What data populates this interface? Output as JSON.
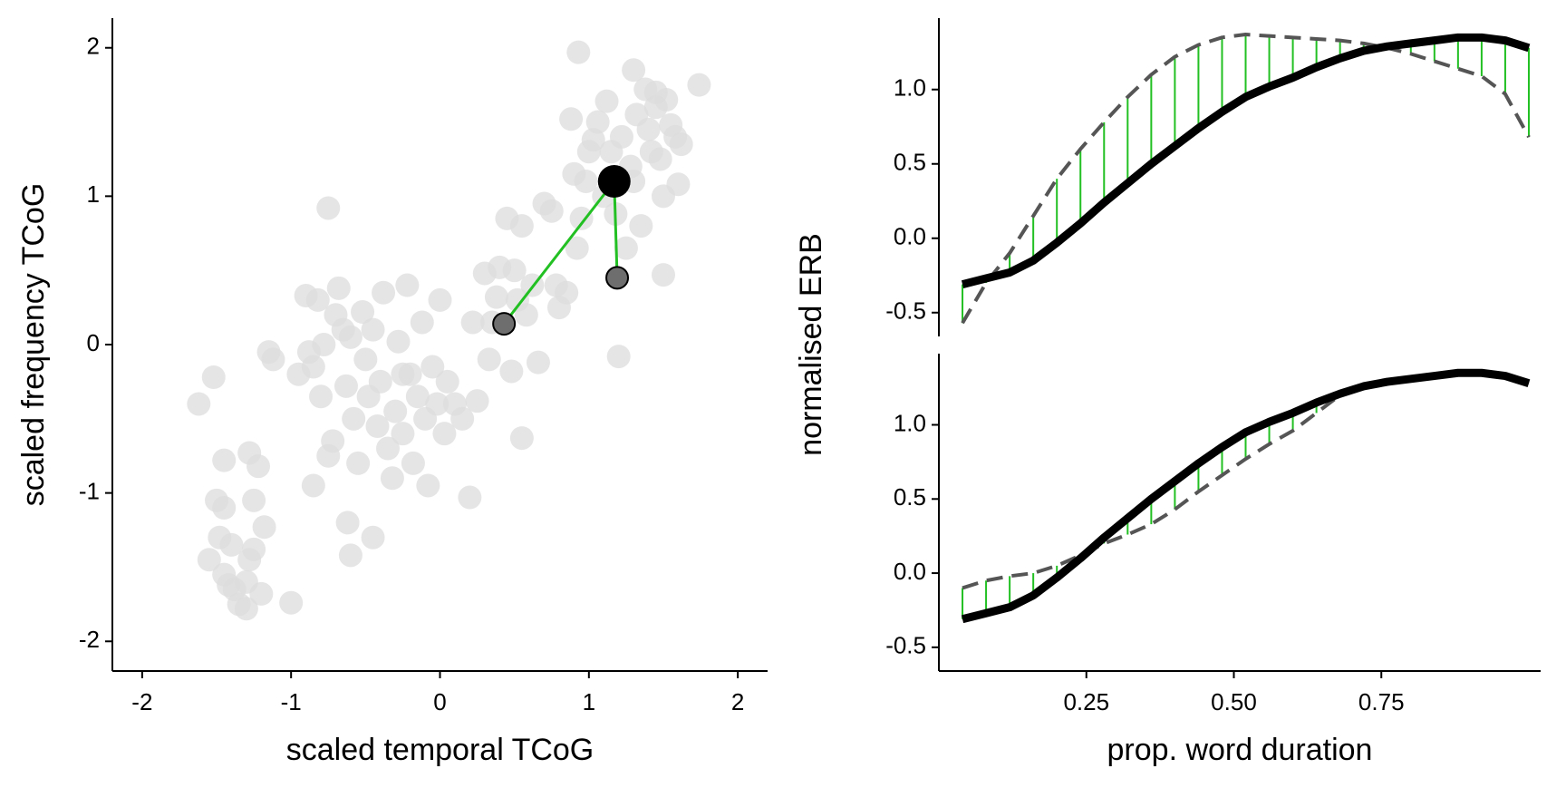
{
  "chart_data": [
    {
      "type": "scatter",
      "xlabel": "scaled temporal TCoG",
      "ylabel": "scaled frequency TCoG",
      "xlim": [
        -2.2,
        2.2
      ],
      "ylim": [
        -2.2,
        2.2
      ],
      "xticks": [
        -2,
        -1,
        0,
        1,
        2
      ],
      "yticks": [
        -2,
        -1,
        0,
        1,
        2
      ],
      "point_color": "#dcdcdc",
      "points": {
        "x": [
          -1.62,
          -1.52,
          -1.5,
          -1.45,
          -1.55,
          -1.48,
          -1.45,
          -1.4,
          -1.38,
          -1.35,
          -1.3,
          -1.28,
          -1.25,
          -1.2,
          -1.3,
          -1.42,
          -1.45,
          -1.28,
          -1.22,
          -1.25,
          -1.18,
          -1.15,
          -1.12,
          -1.0,
          -0.95,
          -0.9,
          -0.88,
          -0.85,
          -0.82,
          -0.8,
          -0.78,
          -0.75,
          -0.72,
          -0.7,
          -0.68,
          -0.65,
          -0.63,
          -0.6,
          -0.58,
          -0.55,
          -0.52,
          -0.5,
          -0.48,
          -0.45,
          -0.42,
          -0.4,
          -0.38,
          -0.35,
          -0.32,
          -0.3,
          -0.28,
          -0.25,
          -0.22,
          -0.2,
          -0.18,
          -0.15,
          -0.12,
          -0.1,
          -0.08,
          -0.05,
          -0.02,
          0.0,
          0.03,
          0.05,
          0.1,
          0.15,
          0.2,
          0.22,
          0.25,
          0.3,
          0.33,
          0.35,
          0.4,
          0.38,
          0.45,
          0.48,
          0.5,
          0.52,
          0.55,
          0.58,
          0.62,
          0.66,
          0.7,
          0.75,
          0.78,
          0.8,
          0.85,
          0.88,
          0.9,
          0.92,
          0.95,
          0.98,
          1.0,
          1.03,
          1.06,
          1.1,
          1.12,
          1.15,
          1.18,
          1.2,
          1.22,
          1.25,
          1.28,
          1.3,
          1.32,
          1.35,
          1.38,
          1.4,
          1.42,
          1.45,
          1.48,
          1.5,
          1.52,
          1.55,
          1.58,
          1.6,
          1.62,
          1.5,
          1.3,
          0.93,
          1.74,
          1.45,
          -0.75,
          -0.62,
          -0.6,
          -0.45,
          -0.25,
          -0.85,
          0.55
        ],
        "y": [
          -0.4,
          -0.22,
          -1.05,
          -1.1,
          -1.45,
          -1.3,
          -1.55,
          -1.35,
          -1.65,
          -1.75,
          -1.6,
          -1.45,
          -1.38,
          -1.68,
          -1.78,
          -1.62,
          -0.78,
          -0.73,
          -0.82,
          -1.05,
          -1.23,
          -0.05,
          -0.1,
          -1.74,
          -0.2,
          0.33,
          -0.05,
          -0.15,
          0.3,
          -0.35,
          0.0,
          0.92,
          -0.65,
          0.2,
          0.38,
          0.1,
          -0.28,
          0.05,
          -0.5,
          -0.8,
          0.22,
          -0.1,
          -0.35,
          0.1,
          -0.55,
          -0.25,
          0.35,
          -0.7,
          -0.9,
          -0.45,
          0.02,
          -0.6,
          0.4,
          -0.2,
          -0.8,
          -0.35,
          0.15,
          -0.5,
          -0.95,
          -0.15,
          -0.4,
          0.3,
          -0.6,
          -0.25,
          -0.4,
          -0.5,
          -1.03,
          0.15,
          -0.38,
          0.48,
          -0.1,
          0.15,
          0.52,
          0.32,
          0.85,
          -0.18,
          0.5,
          0.3,
          -0.63,
          0.2,
          0.4,
          -0.12,
          0.95,
          0.9,
          0.4,
          0.25,
          0.35,
          1.52,
          1.15,
          0.65,
          0.85,
          1.1,
          1.3,
          1.38,
          1.5,
          1.0,
          1.64,
          1.3,
          0.88,
          -0.08,
          1.4,
          0.65,
          1.2,
          1.1,
          1.55,
          0.8,
          1.72,
          1.45,
          1.3,
          1.6,
          1.25,
          0.47,
          1.65,
          1.48,
          1.4,
          1.08,
          1.35,
          1.0,
          1.85,
          1.97,
          1.75,
          1.7,
          -0.75,
          -1.2,
          -1.42,
          -1.3,
          -0.2,
          -0.95,
          0.8
        ]
      },
      "highlight": {
        "x": 1.17,
        "y": 1.1,
        "color": "#000000"
      },
      "neighbors": {
        "x": [
          0.43,
          1.19
        ],
        "y": [
          0.14,
          0.45
        ],
        "color": "#6e6e6e"
      },
      "link_color": "#22c022"
    },
    {
      "type": "line",
      "xlim": [
        0.0,
        1.02
      ],
      "ylim": [
        -0.66,
        1.48
      ],
      "yticks": [
        -0.5,
        {
          "value": 0,
          "label": "0.0"
        },
        0.5,
        {
          "value": 1,
          "label": "1.0"
        }
      ],
      "x": [
        0.04,
        0.08,
        0.12,
        0.16,
        0.2,
        0.24,
        0.28,
        0.32,
        0.36,
        0.4,
        0.44,
        0.48,
        0.52,
        0.56,
        0.6,
        0.64,
        0.68,
        0.72,
        0.76,
        0.8,
        0.84,
        0.88,
        0.92,
        0.96,
        1.0
      ],
      "difference_color": "#22c022",
      "series": [
        {
          "color": "#000000",
          "dash": false,
          "values": [
            -0.31,
            -0.27,
            -0.23,
            -0.15,
            -0.03,
            0.1,
            0.24,
            0.37,
            0.5,
            0.62,
            0.74,
            0.85,
            0.95,
            1.02,
            1.08,
            1.15,
            1.21,
            1.26,
            1.29,
            1.31,
            1.33,
            1.35,
            1.35,
            1.33,
            1.28
          ]
        },
        {
          "color": "#555555",
          "dash": true,
          "values": [
            -0.57,
            -0.3,
            -0.1,
            0.15,
            0.4,
            0.6,
            0.78,
            0.95,
            1.1,
            1.22,
            1.3,
            1.35,
            1.37,
            1.36,
            1.35,
            1.34,
            1.33,
            1.31,
            1.28,
            1.24,
            1.19,
            1.14,
            1.09,
            0.97,
            0.68
          ]
        }
      ]
    },
    {
      "type": "line",
      "xlabel": "prop. word duration",
      "ylabel": "normalised ERB",
      "xlim": [
        0.0,
        1.02
      ],
      "ylim": [
        -0.66,
        1.48
      ],
      "xticks": [
        0.25,
        {
          "value": 0.5,
          "label": "0.50"
        },
        0.75
      ],
      "yticks": [
        -0.5,
        {
          "value": 0,
          "label": "0.0"
        },
        0.5,
        {
          "value": 1,
          "label": "1.0"
        }
      ],
      "x": [
        0.04,
        0.08,
        0.12,
        0.16,
        0.2,
        0.24,
        0.28,
        0.32,
        0.36,
        0.4,
        0.44,
        0.48,
        0.52,
        0.56,
        0.6,
        0.64,
        0.68,
        0.72,
        0.76,
        0.8,
        0.84,
        0.88,
        0.92,
        0.96,
        1.0
      ],
      "difference_color": "#22c022",
      "series": [
        {
          "color": "#000000",
          "dash": false,
          "values": [
            -0.31,
            -0.27,
            -0.23,
            -0.15,
            -0.03,
            0.1,
            0.24,
            0.37,
            0.5,
            0.62,
            0.74,
            0.85,
            0.95,
            1.02,
            1.08,
            1.15,
            1.21,
            1.26,
            1.29,
            1.31,
            1.33,
            1.35,
            1.35,
            1.33,
            1.28
          ]
        },
        {
          "color": "#555555",
          "dash": true,
          "values": [
            -0.1,
            -0.05,
            -0.02,
            0.0,
            0.05,
            0.12,
            0.2,
            0.26,
            0.33,
            0.43,
            0.55,
            0.66,
            0.77,
            0.87,
            0.96,
            1.08,
            1.2,
            1.27,
            1.3,
            1.32,
            1.34,
            1.35,
            1.35,
            1.33,
            1.28
          ]
        }
      ]
    }
  ]
}
